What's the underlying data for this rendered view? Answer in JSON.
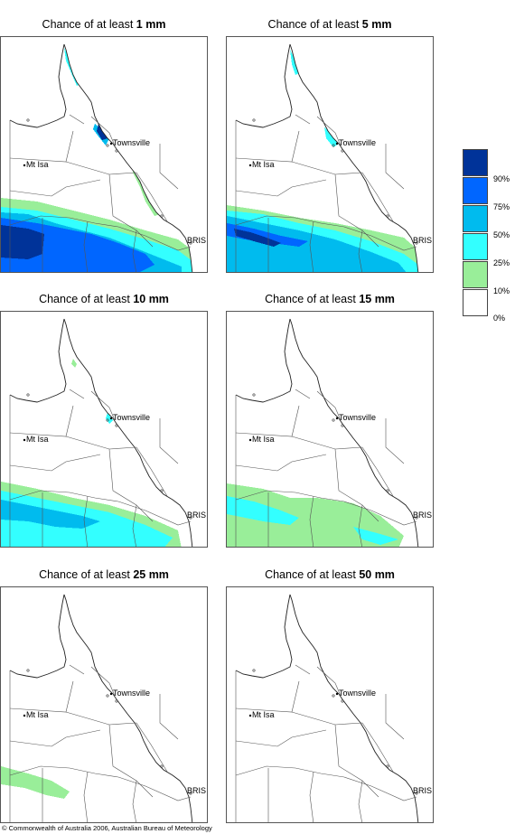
{
  "panels": [
    {
      "title_prefix": "Chance of at least ",
      "amount": "1 mm"
    },
    {
      "title_prefix": "Chance of at least ",
      "amount": "5 mm"
    },
    {
      "title_prefix": "Chance of at least ",
      "amount": "10 mm"
    },
    {
      "title_prefix": "Chance of at least ",
      "amount": "15 mm"
    },
    {
      "title_prefix": "Chance of at least ",
      "amount": "25 mm"
    },
    {
      "title_prefix": "Chance of at least ",
      "amount": "50 mm"
    }
  ],
  "places": {
    "townsville": "Townsville",
    "mt_isa": "Mt Isa",
    "brisbane": "BRIS"
  },
  "legend": {
    "labels": [
      "90%",
      "75%",
      "50%",
      "25%",
      "10%",
      "0%"
    ],
    "colors": [
      "#003399",
      "#0066ff",
      "#00bbee",
      "#33ffff",
      "#99ee99",
      "#ffffff"
    ]
  },
  "footer": "© Commonwealth of Australia 2006, Australian Bureau of Meteorology"
}
